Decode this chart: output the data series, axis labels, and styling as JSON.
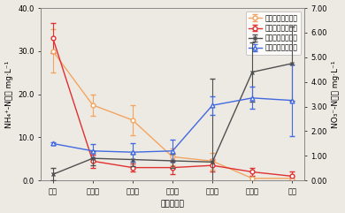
{
  "x_labels": [
    "进水",
    "厌氧池",
    "缺氧池",
    "好氧池",
    "混合池",
    "好氧池",
    "出水"
  ],
  "xlabel": "各个反应器",
  "ylabel_left": "NH₄⁺-N浓度 mg·L⁻¹",
  "ylabel_right": "NO₃⁻-N浓度 mg·L⁻¹",
  "ylim_left": [
    0.0,
    40.0
  ],
  "ylim_right": [
    0.0,
    7.0
  ],
  "yticks_left": [
    0.0,
    10.0,
    20.0,
    30.0,
    40.0
  ],
  "yticks_right": [
    0.0,
    1.0,
    2.0,
    3.0,
    4.0,
    5.0,
    6.0,
    7.0
  ],
  "series": [
    {
      "label": "投加纤维素前氨氮",
      "color": "#f4a460",
      "marker": "o",
      "linestyle": "-",
      "axis": "left",
      "values": [
        30.0,
        17.5,
        14.0,
        5.5,
        4.5,
        0.5,
        0.5
      ],
      "yerr": [
        5.0,
        2.5,
        3.5,
        2.0,
        2.0,
        0.5,
        0.5
      ]
    },
    {
      "label": "投加纤维素后氨氮",
      "color": "#e03030",
      "marker": "o",
      "linestyle": "-",
      "axis": "left",
      "values": [
        33.0,
        4.5,
        3.0,
        3.0,
        3.5,
        2.0,
        1.0
      ],
      "yerr": [
        3.5,
        1.5,
        1.0,
        1.5,
        1.5,
        1.0,
        1.0
      ]
    },
    {
      "label": "投加纤维素前确氮",
      "color": "#505050",
      "marker": "x",
      "linestyle": "-",
      "axis": "right",
      "values": [
        0.25,
        0.9,
        0.85,
        0.8,
        0.75,
        4.4,
        4.75
      ],
      "yerr": [
        0.25,
        0.28,
        0.25,
        0.28,
        3.4,
        1.2,
        1.5
      ]
    },
    {
      "label": "投加纤维素后确氮",
      "color": "#4169e1",
      "marker": "^",
      "linestyle": "-",
      "axis": "right",
      "values": [
        1.5,
        1.2,
        1.15,
        1.2,
        3.05,
        3.35,
        3.25
      ],
      "yerr": [
        0.05,
        0.28,
        0.38,
        0.45,
        0.38,
        0.45,
        1.45
      ]
    }
  ],
  "legend_loc": "upper right",
  "background_color": "#edeae4",
  "plot_bg_color": "#edeae4",
  "label_fontsize": 6.5,
  "tick_fontsize": 6.0,
  "legend_fontsize": 5.5
}
